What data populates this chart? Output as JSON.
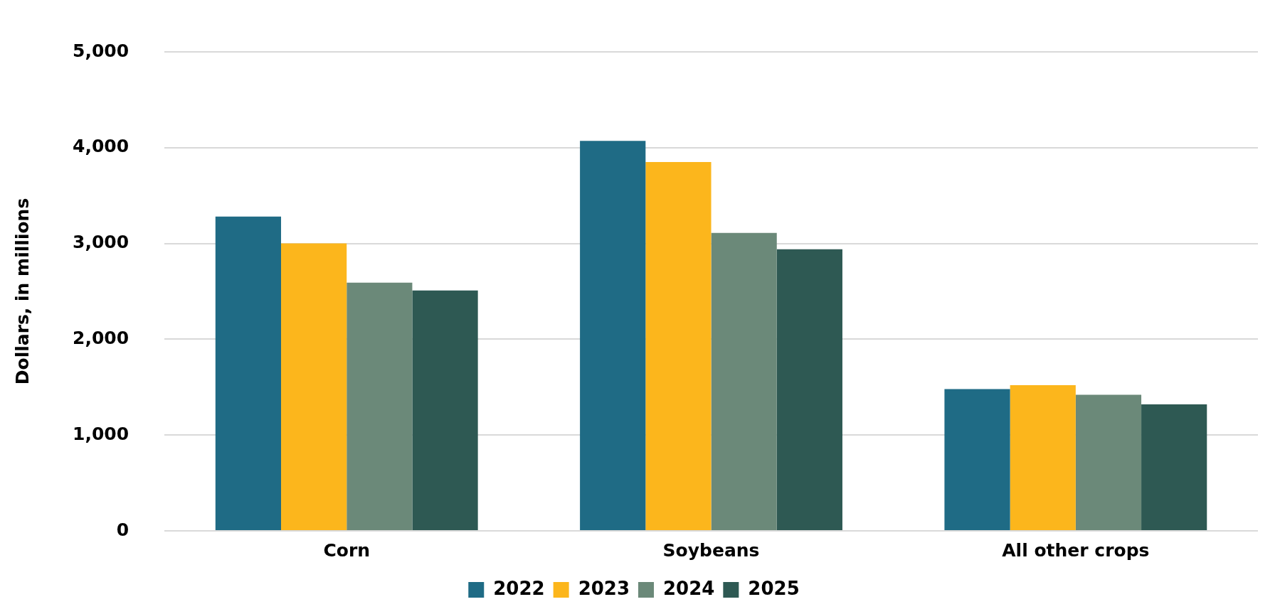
{
  "chart_data": {
    "type": "bar",
    "ylabel": "Dollars, in millions",
    "categories": [
      "Corn",
      "Soybeans",
      "All other crops"
    ],
    "series": [
      {
        "name": "2022",
        "color": "#1f6b85",
        "values": [
          3280,
          4070,
          1480
        ]
      },
      {
        "name": "2023",
        "color": "#fcb61c",
        "values": [
          3000,
          3850,
          1520
        ]
      },
      {
        "name": "2024",
        "color": "#6b8979",
        "values": [
          2590,
          3110,
          1420
        ]
      },
      {
        "name": "2025",
        "color": "#2e5953",
        "values": [
          2510,
          2940,
          1320
        ]
      }
    ],
    "ylim": [
      0,
      5000
    ],
    "yticks": [
      {
        "value": 0,
        "label": "0"
      },
      {
        "value": 1000,
        "label": "1,000"
      },
      {
        "value": 2000,
        "label": "2,000"
      },
      {
        "value": 3000,
        "label": "3,000"
      },
      {
        "value": 4000,
        "label": "4,000"
      },
      {
        "value": 5000,
        "label": "5,000"
      }
    ],
    "grid": "y",
    "legend": "bottom"
  }
}
